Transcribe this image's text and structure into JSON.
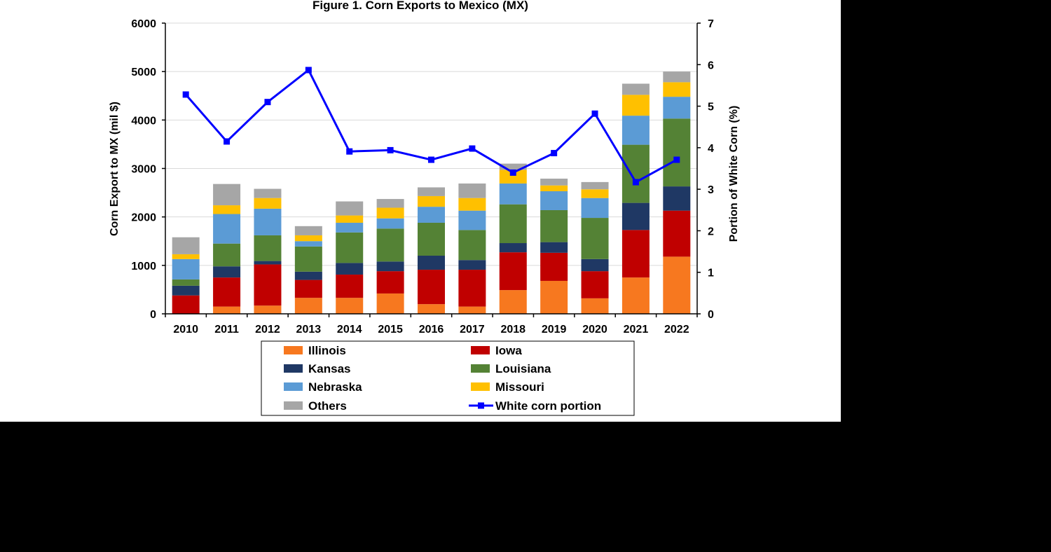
{
  "chart_data": {
    "type": "bar",
    "stacked": true,
    "title": "Figure  1. Corn  Exports  to Mexico  (MX)",
    "ylabel": "Corn Export to MX (mil $)",
    "y2label": "Portion of White Corn (%)",
    "ylim": [
      0,
      6000
    ],
    "y2lim": [
      0,
      7
    ],
    "yticks": [
      "0",
      "1000",
      "2000",
      "3000",
      "4000",
      "5000",
      "6000"
    ],
    "y2ticks": [
      "0",
      "1",
      "2",
      "3",
      "4",
      "5",
      "6",
      "7"
    ],
    "grid": true,
    "categories": [
      "2010",
      "2011",
      "2012",
      "2013",
      "2014",
      "2015",
      "2016",
      "2017",
      "2018",
      "2019",
      "2020",
      "2021",
      "2022"
    ],
    "series": [
      {
        "name": "Illinois",
        "color": "#f7781f",
        "values": [
          0,
          150,
          170,
          330,
          330,
          420,
          200,
          150,
          490,
          680,
          320,
          750,
          1180
        ]
      },
      {
        "name": "Iowa",
        "color": "#c00000",
        "values": [
          380,
          600,
          850,
          370,
          480,
          460,
          710,
          760,
          780,
          580,
          560,
          980,
          950
        ]
      },
      {
        "name": "Kansas",
        "color": "#1f3864",
        "values": [
          200,
          230,
          70,
          170,
          240,
          200,
          290,
          200,
          190,
          220,
          250,
          560,
          500
        ]
      },
      {
        "name": "Louisiana",
        "color": "#548235",
        "values": [
          130,
          470,
          530,
          520,
          630,
          680,
          680,
          620,
          800,
          660,
          850,
          1200,
          1400
        ]
      },
      {
        "name": "Nebraska",
        "color": "#5b9bd5",
        "values": [
          420,
          610,
          550,
          110,
          200,
          210,
          330,
          400,
          430,
          390,
          410,
          600,
          450
        ]
      },
      {
        "name": "Missouri",
        "color": "#ffc000",
        "values": [
          100,
          180,
          220,
          120,
          150,
          220,
          220,
          260,
          280,
          120,
          180,
          430,
          300
        ]
      },
      {
        "name": "Others",
        "color": "#a6a6a6",
        "values": [
          350,
          440,
          190,
          190,
          290,
          180,
          180,
          300,
          130,
          140,
          150,
          230,
          220
        ]
      }
    ],
    "line_series": {
      "name": "White corn portion",
      "color": "#0000ff",
      "axis": "right",
      "values": [
        5.28,
        4.15,
        5.1,
        5.87,
        3.91,
        3.94,
        3.71,
        3.98,
        3.4,
        3.87,
        4.82,
        3.17,
        3.71
      ]
    },
    "legend": {
      "placement": "bottom",
      "columns": 2
    }
  }
}
